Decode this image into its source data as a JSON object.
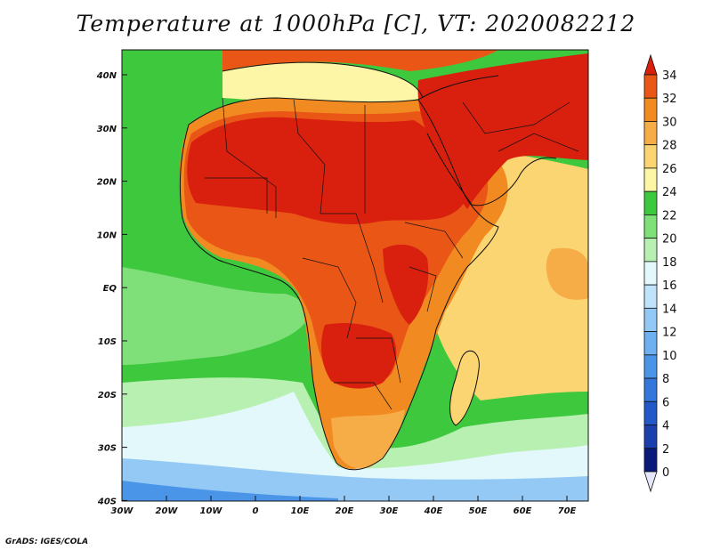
{
  "title": "Temperature at 1000hPa [C], VT: 2020082212",
  "credit": "GrADS: IGES/COLA",
  "axes": {
    "lon_ticks": [
      "30W",
      "20W",
      "10W",
      "0",
      "10E",
      "20E",
      "30E",
      "40E",
      "50E",
      "60E",
      "70E"
    ],
    "lat_ticks": [
      "40N",
      "30N",
      "20N",
      "10N",
      "EQ",
      "10S",
      "20S",
      "30S",
      "40S"
    ]
  },
  "colorbar": {
    "levels": [
      "0",
      "2",
      "4",
      "6",
      "8",
      "10",
      "12",
      "14",
      "16",
      "18",
      "20",
      "22",
      "24",
      "26",
      "28",
      "30",
      "32",
      "34"
    ],
    "colors": [
      "#0a1a7a",
      "#1c3fae",
      "#2457c8",
      "#3377dd",
      "#4b95e8",
      "#6eb0f0",
      "#94c9f5",
      "#bfe3fa",
      "#e2f8fa",
      "#b7f0b0",
      "#7fe07a",
      "#3ec83e",
      "#fdf6a6",
      "#fbd572",
      "#f7ad47",
      "#f28a22",
      "#e95616",
      "#d9200f"
    ]
  },
  "fields": {
    "ocean_south": "#3ec83e",
    "ocean_cool": "#b7f0b0",
    "ocean_cold": "#e2f8fa",
    "ocean_colder": "#94c9f5",
    "ocean_coldest": "#4b95e8",
    "ocean_tropic": "#7fe07a",
    "indian_warm": "#fbd572",
    "indian_warmer": "#f7ad47",
    "land_hot": "#d9200f",
    "land_warm": "#e95616",
    "land_mild": "#f28a22",
    "land_cool": "#f7ad47",
    "land_cooler": "#fbd572",
    "med": "#fdf6a6"
  }
}
